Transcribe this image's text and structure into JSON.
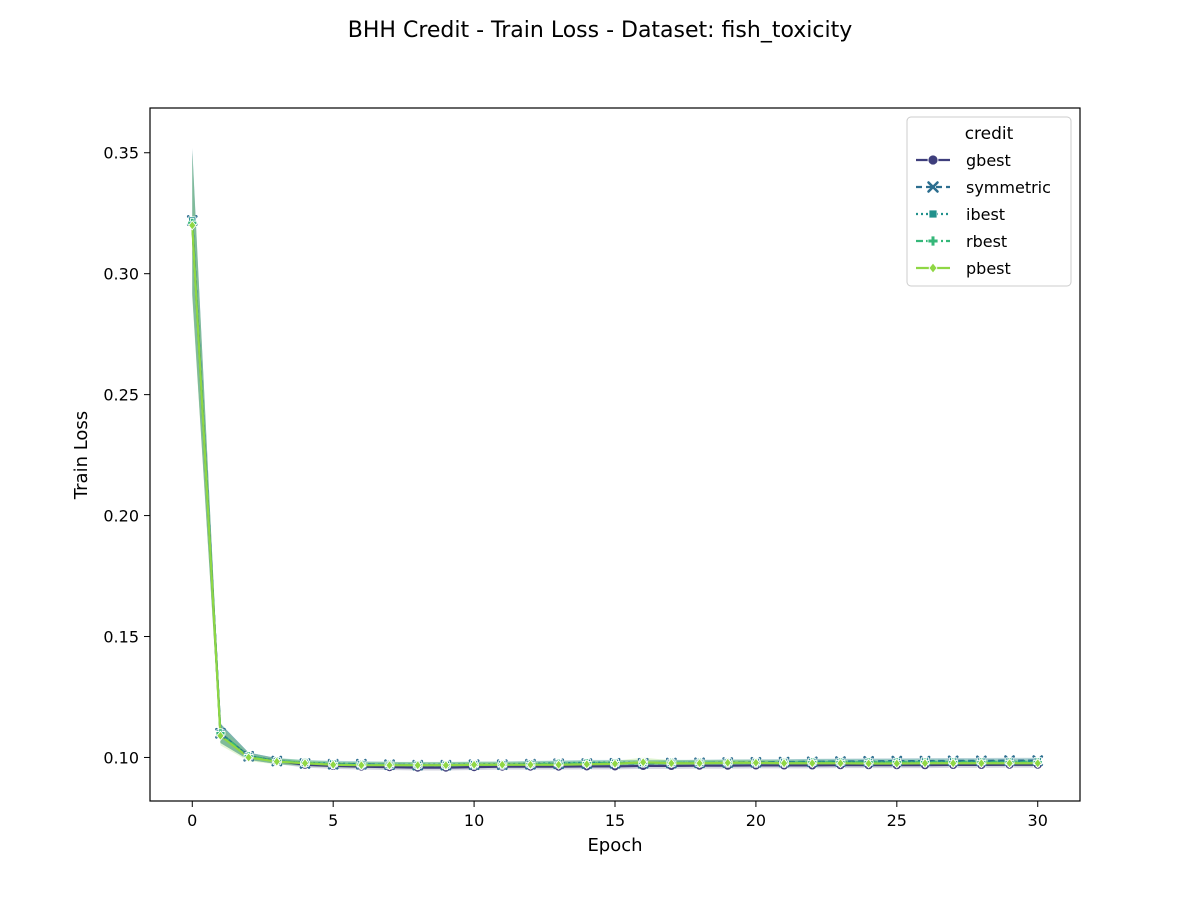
{
  "chart_data": {
    "type": "line",
    "title": "BHH Credit - Train Loss - Dataset: fish_toxicity",
    "xlabel": "Epoch",
    "ylabel": "Train Loss",
    "xlim": [
      -1.5,
      31.5
    ],
    "ylim": [
      0.082,
      0.3685
    ],
    "xticks": [
      0,
      5,
      10,
      15,
      20,
      25,
      30
    ],
    "yticks": [
      0.1,
      0.15,
      0.2,
      0.25,
      0.3,
      0.35
    ],
    "grid": false,
    "legend": {
      "title": "credit",
      "placement": "top-right"
    },
    "x": [
      0,
      1,
      2,
      3,
      4,
      5,
      6,
      7,
      8,
      9,
      10,
      11,
      12,
      13,
      14,
      15,
      16,
      17,
      18,
      19,
      20,
      21,
      22,
      23,
      24,
      25,
      26,
      27,
      28,
      29,
      30
    ],
    "series": [
      {
        "name": "gbest",
        "color": "#3e3e7c",
        "dash": "solid",
        "marker": "circle",
        "values": [
          0.321,
          0.11,
          0.1005,
          0.0985,
          0.097,
          0.0965,
          0.0962,
          0.096,
          0.0958,
          0.0958,
          0.096,
          0.0962,
          0.0962,
          0.0962,
          0.0963,
          0.0963,
          0.0965,
          0.0965,
          0.0966,
          0.0966,
          0.0967,
          0.0967,
          0.0967,
          0.0968,
          0.0968,
          0.0968,
          0.0968,
          0.0969,
          0.0969,
          0.097,
          0.097
        ],
        "band": [
          0.03,
          0.004,
          0.0015,
          0.0012,
          0.0012,
          0.0012,
          0.0012,
          0.0012,
          0.0012,
          0.0012,
          0.0012,
          0.0012,
          0.0012,
          0.0012,
          0.0012,
          0.0012,
          0.0012,
          0.0012,
          0.0012,
          0.0012,
          0.0012,
          0.0012,
          0.0012,
          0.0012,
          0.0012,
          0.0012,
          0.0012,
          0.0012,
          0.0012,
          0.0012,
          0.0012
        ]
      },
      {
        "name": "symmetric",
        "color": "#2c6e8f",
        "dash": "6,4",
        "marker": "x",
        "values": [
          0.322,
          0.11,
          0.1005,
          0.0985,
          0.0975,
          0.0972,
          0.0972,
          0.097,
          0.0968,
          0.0968,
          0.097,
          0.097,
          0.0972,
          0.0974,
          0.0975,
          0.0976,
          0.0976,
          0.0977,
          0.0978,
          0.0979,
          0.098,
          0.0981,
          0.0982,
          0.0983,
          0.0984,
          0.0985,
          0.0985,
          0.0986,
          0.0986,
          0.0987,
          0.0987
        ],
        "band": [
          0.03,
          0.004,
          0.0015,
          0.0012,
          0.0012,
          0.0012,
          0.0012,
          0.0012,
          0.0012,
          0.0012,
          0.0012,
          0.0012,
          0.0012,
          0.0012,
          0.0012,
          0.0012,
          0.0012,
          0.0012,
          0.0012,
          0.0012,
          0.0012,
          0.0012,
          0.0012,
          0.0012,
          0.0012,
          0.0012,
          0.0012,
          0.0012,
          0.0012,
          0.0012,
          0.0012
        ]
      },
      {
        "name": "ibest",
        "color": "#21918c",
        "dash": "2,3",
        "marker": "square",
        "values": [
          0.322,
          0.11,
          0.1005,
          0.0985,
          0.0978,
          0.0975,
          0.0972,
          0.097,
          0.097,
          0.097,
          0.0972,
          0.0972,
          0.0974,
          0.0976,
          0.0978,
          0.0978,
          0.0978,
          0.0978,
          0.0978,
          0.098,
          0.098,
          0.098,
          0.0982,
          0.0982,
          0.0982,
          0.0982,
          0.0984,
          0.0984,
          0.0984,
          0.0984,
          0.0985
        ],
        "band": [
          0.03,
          0.004,
          0.0015,
          0.0012,
          0.0012,
          0.0012,
          0.0012,
          0.0012,
          0.0012,
          0.0012,
          0.0012,
          0.0012,
          0.0012,
          0.0012,
          0.0012,
          0.0012,
          0.0012,
          0.0012,
          0.0012,
          0.0012,
          0.0012,
          0.0012,
          0.0012,
          0.0012,
          0.0012,
          0.0012,
          0.0012,
          0.0012,
          0.0012,
          0.0012,
          0.0012
        ]
      },
      {
        "name": "rbest",
        "color": "#35b779",
        "dash": "7,3,2,3",
        "marker": "plus",
        "values": [
          0.321,
          0.11,
          0.1005,
          0.0985,
          0.0978,
          0.0972,
          0.097,
          0.097,
          0.0968,
          0.0968,
          0.097,
          0.097,
          0.0972,
          0.0974,
          0.0976,
          0.0976,
          0.0978,
          0.0978,
          0.0978,
          0.0978,
          0.0978,
          0.0978,
          0.098,
          0.098,
          0.098,
          0.098,
          0.098,
          0.098,
          0.098,
          0.098,
          0.098
        ],
        "band": [
          0.03,
          0.004,
          0.0015,
          0.0012,
          0.0012,
          0.0012,
          0.0012,
          0.0012,
          0.0012,
          0.0012,
          0.0012,
          0.0012,
          0.0012,
          0.0012,
          0.0012,
          0.0012,
          0.0012,
          0.0012,
          0.0012,
          0.0012,
          0.0012,
          0.0012,
          0.0012,
          0.0012,
          0.0012,
          0.0012,
          0.0012,
          0.0012,
          0.0012,
          0.0012,
          0.0012
        ]
      },
      {
        "name": "pbest",
        "color": "#8fd744",
        "dash": "solid",
        "marker": "diamond",
        "values": [
          0.32,
          0.109,
          0.1,
          0.0983,
          0.0976,
          0.097,
          0.0968,
          0.0968,
          0.0968,
          0.0968,
          0.097,
          0.097,
          0.097,
          0.097,
          0.0972,
          0.0974,
          0.098,
          0.0976,
          0.0976,
          0.0978,
          0.0978,
          0.0976,
          0.0976,
          0.0976,
          0.0975,
          0.0975,
          0.0976,
          0.0976,
          0.0976,
          0.0976,
          0.0976
        ],
        "band": [
          0.03,
          0.004,
          0.0015,
          0.0012,
          0.0012,
          0.0012,
          0.0012,
          0.0012,
          0.0012,
          0.0012,
          0.0012,
          0.0012,
          0.0012,
          0.0012,
          0.0012,
          0.0012,
          0.002,
          0.0012,
          0.0012,
          0.0012,
          0.0012,
          0.0012,
          0.0012,
          0.0012,
          0.0012,
          0.0012,
          0.0012,
          0.0012,
          0.0012,
          0.0012,
          0.0012
        ]
      }
    ]
  }
}
